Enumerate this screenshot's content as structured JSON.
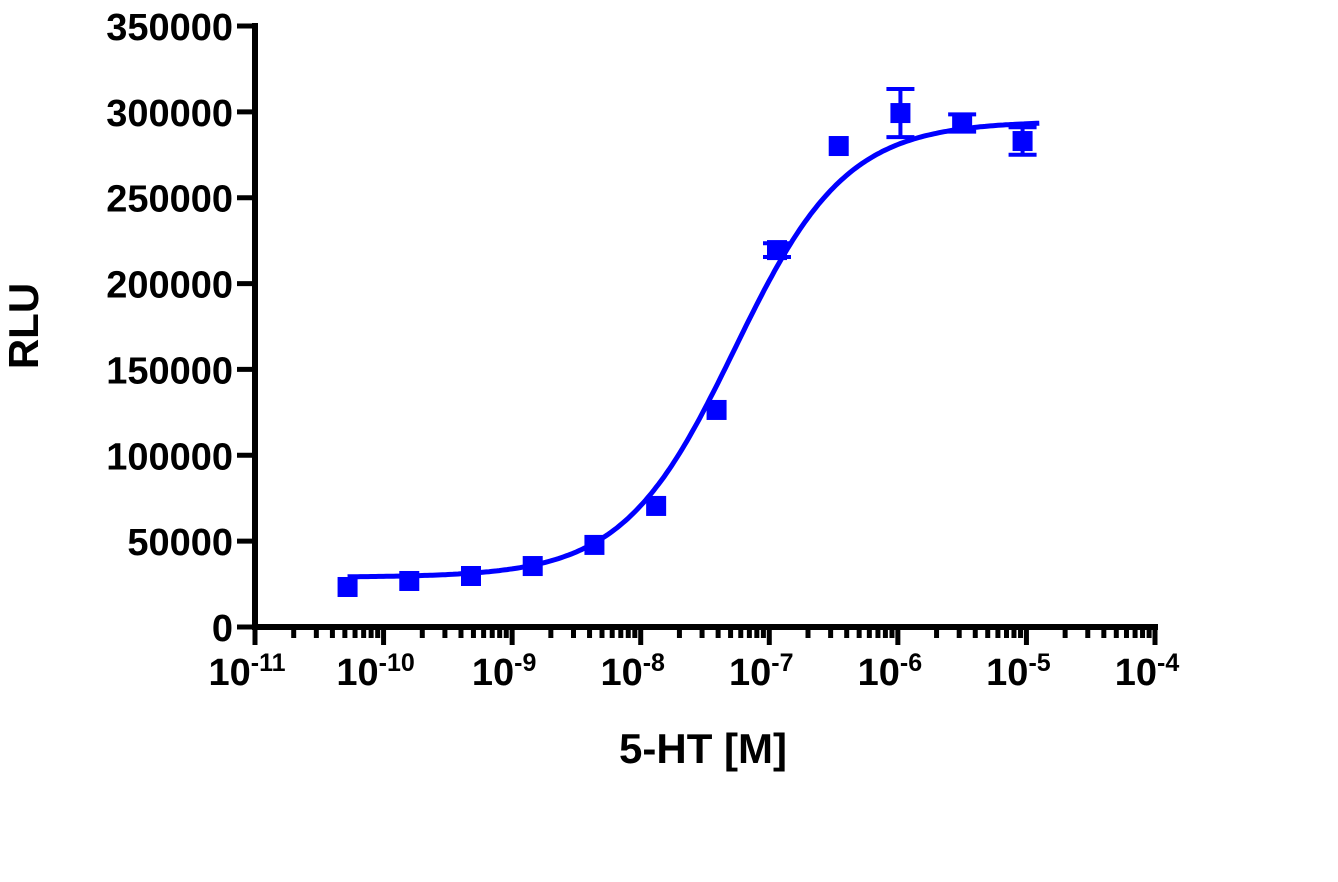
{
  "chart_data": {
    "type": "scatter",
    "title": "",
    "xlabel": "5-HT [M]",
    "ylabel": "RLU",
    "x_scale": "log10",
    "xlim": [
      1e-11,
      0.0001
    ],
    "ylim": [
      0,
      350000
    ],
    "grid": false,
    "x_tick_labels": [
      {
        "base": "10",
        "exp": "-11"
      },
      {
        "base": "10",
        "exp": "-10"
      },
      {
        "base": "10",
        "exp": "-9"
      },
      {
        "base": "10",
        "exp": "-8"
      },
      {
        "base": "10",
        "exp": "-7"
      },
      {
        "base": "10",
        "exp": "-6"
      },
      {
        "base": "10",
        "exp": "-5"
      },
      {
        "base": "10",
        "exp": "-4"
      }
    ],
    "y_tick_labels": [
      "0",
      "50000",
      "100000",
      "150000",
      "200000",
      "250000",
      "300000",
      "350000"
    ],
    "series_color": "#0000ff",
    "points": [
      {
        "log_x": -10.28,
        "y": 23300,
        "err": 0
      },
      {
        "log_x": -9.8,
        "y": 26800,
        "err": 0
      },
      {
        "log_x": -9.32,
        "y": 29700,
        "err": 0
      },
      {
        "log_x": -8.84,
        "y": 35500,
        "err": 0
      },
      {
        "log_x": -8.36,
        "y": 47800,
        "err": 0
      },
      {
        "log_x": -7.88,
        "y": 70500,
        "err": 0
      },
      {
        "log_x": -7.41,
        "y": 126400,
        "err": 0
      },
      {
        "log_x": -6.94,
        "y": 219500,
        "err": 4000
      },
      {
        "log_x": -6.46,
        "y": 280100,
        "err": 0
      },
      {
        "log_x": -5.98,
        "y": 299300,
        "err": 14000
      },
      {
        "log_x": -5.5,
        "y": 293500,
        "err": 5000
      },
      {
        "log_x": -5.03,
        "y": 283000,
        "err": 8000
      }
    ],
    "fit": {
      "model": "sigmoidal dose-response",
      "bottom": 29000,
      "top": 294500,
      "log_ec50": -7.27,
      "hill": 1.0,
      "log_x_range": [
        -10.28,
        -4.9
      ]
    }
  }
}
